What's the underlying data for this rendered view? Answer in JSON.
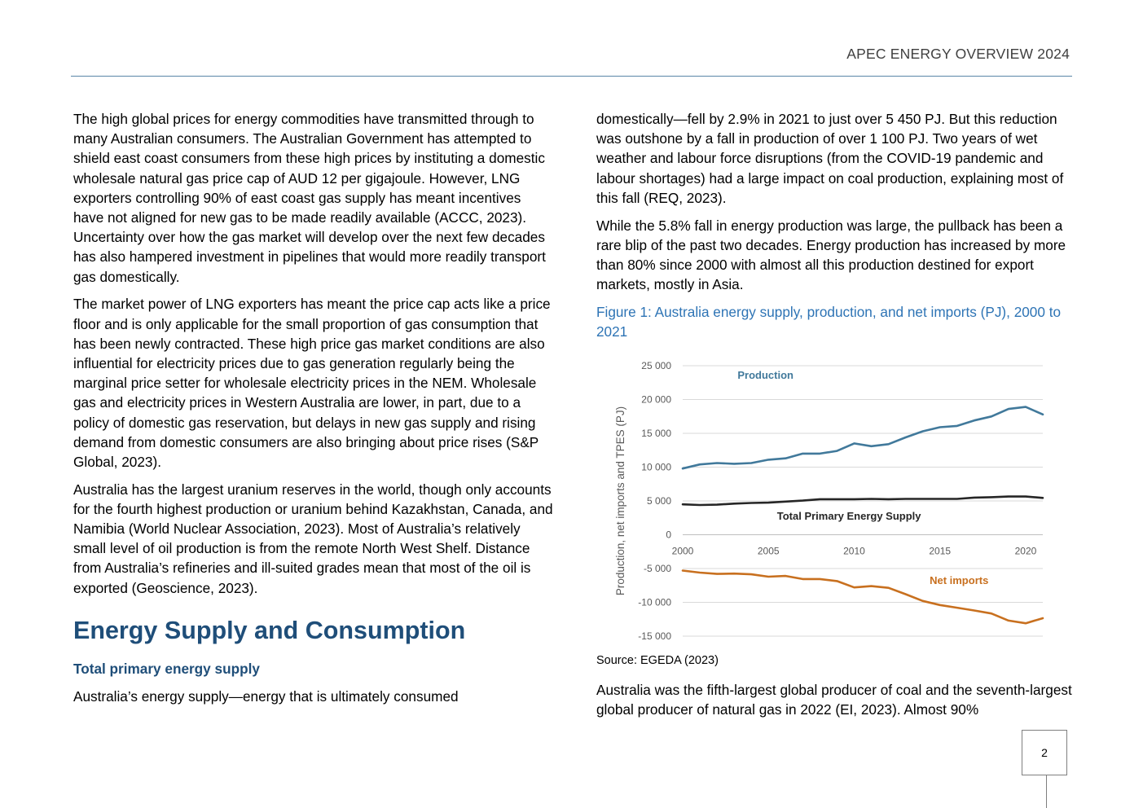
{
  "header": {
    "title": "APEC ENERGY OVERVIEW 2024"
  },
  "left_column": {
    "paragraphs": [
      "The high global prices for energy commodities have transmitted through to many Australian consumers. The Australian Government has attempted to shield east coast consumers from these high prices by instituting a domestic wholesale natural gas price cap of AUD 12 per gigajoule. However, LNG exporters controlling 90% of east coast gas supply has meant incentives have not aligned for new gas to be made readily available (ACCC, 2023). Uncertainty over how the gas market will develop over the next few decades has also hampered investment in pipelines that would more readily transport gas domestically.",
      "The market power of LNG exporters has meant the price cap acts like a price floor and is only applicable for the small proportion of gas consumption that has been newly contracted. These high price gas market conditions are also influential for electricity prices due to gas generation regularly being the marginal price setter for wholesale electricity prices in the NEM. Wholesale gas and electricity prices in Western Australia are lower, in part, due to a policy of domestic gas reservation, but delays in new gas supply and rising demand from domestic consumers are also bringing about price rises (S&P Global, 2023).",
      "Australia has the largest uranium reserves in the world, though only accounts for the fourth highest production or uranium behind Kazakhstan, Canada, and Namibia (World Nuclear Association, 2023). Most of Australia’s relatively small level of oil production is from the remote North West Shelf. Distance from Australia’s refineries and ill-suited grades mean that most of the oil is exported (Geoscience, 2023)."
    ],
    "section_heading": "Energy Supply and Consumption",
    "subheading": "Total primary energy supply",
    "last_paragraph": "Australia’s energy supply—energy that is ultimately consumed"
  },
  "right_column": {
    "paragraphs": [
      "domestically—fell by 2.9% in 2021 to just over 5 450 PJ. But this reduction was outshone by a fall in production of over 1 100 PJ. Two years of wet weather and labour force disruptions (from the COVID-19 pandemic and labour shortages) had a large impact on coal production, explaining most of this fall (REQ, 2023).",
      "While the 5.8% fall in energy production was large, the pullback has been a rare blip of the past two decades. Energy production has increased by more than 80% since 2000 with almost all this production destined for export markets, mostly in Asia."
    ],
    "figure_caption": "Figure 1: Australia energy supply, production, and net imports (PJ), 2000 to 2021",
    "source": "Source: EGEDA (2023)",
    "after_paragraph": "Australia was the fifth-largest global producer of coal and the seventh-largest global producer of natural gas in 2022 (EI, 2023). Almost 90%"
  },
  "page_number": "2",
  "chart_data": {
    "type": "line",
    "title": "",
    "xlabel": "",
    "ylabel": "Production, net imports and TPES (PJ)",
    "x": [
      2000,
      2001,
      2002,
      2003,
      2004,
      2005,
      2006,
      2007,
      2008,
      2009,
      2010,
      2011,
      2012,
      2013,
      2014,
      2015,
      2016,
      2017,
      2018,
      2019,
      2020,
      2021
    ],
    "xticks": [
      "2000",
      "2005",
      "2010",
      "2015",
      "2020"
    ],
    "xtick_values": [
      2000,
      2005,
      2010,
      2015,
      2020
    ],
    "yticks": [
      "25 000",
      "20 000",
      "15 000",
      "10 000",
      "5 000",
      "0",
      "-5 000",
      "-10 000",
      "-15 000"
    ],
    "ytick_values": [
      25000,
      20000,
      15000,
      10000,
      5000,
      0,
      -5000,
      -10000,
      -15000
    ],
    "xlim": [
      2000,
      2021
    ],
    "ylim": [
      -15000,
      25000
    ],
    "grid": "horizontal",
    "series": [
      {
        "name": "Production",
        "color": "#41799b",
        "values": [
          9800,
          10400,
          10600,
          10500,
          10600,
          11100,
          11300,
          12000,
          12000,
          12400,
          13500,
          13100,
          13400,
          14400,
          15300,
          15900,
          16100,
          16900,
          17500,
          18600,
          18900,
          17800
        ]
      },
      {
        "name": "Total Primary Energy Supply",
        "color": "#262626",
        "values": [
          4500,
          4400,
          4450,
          4600,
          4700,
          4750,
          4900,
          5050,
          5250,
          5250,
          5250,
          5300,
          5250,
          5300,
          5300,
          5300,
          5300,
          5500,
          5550,
          5650,
          5650,
          5450
        ]
      },
      {
        "name": "Net imports",
        "color": "#c8701f",
        "values": [
          -5300,
          -5600,
          -5800,
          -5750,
          -5850,
          -6200,
          -6100,
          -6550,
          -6550,
          -6850,
          -7800,
          -7600,
          -7850,
          -8800,
          -9800,
          -10400,
          -10800,
          -11200,
          -11650,
          -12700,
          -13100,
          -12350
        ]
      }
    ]
  }
}
